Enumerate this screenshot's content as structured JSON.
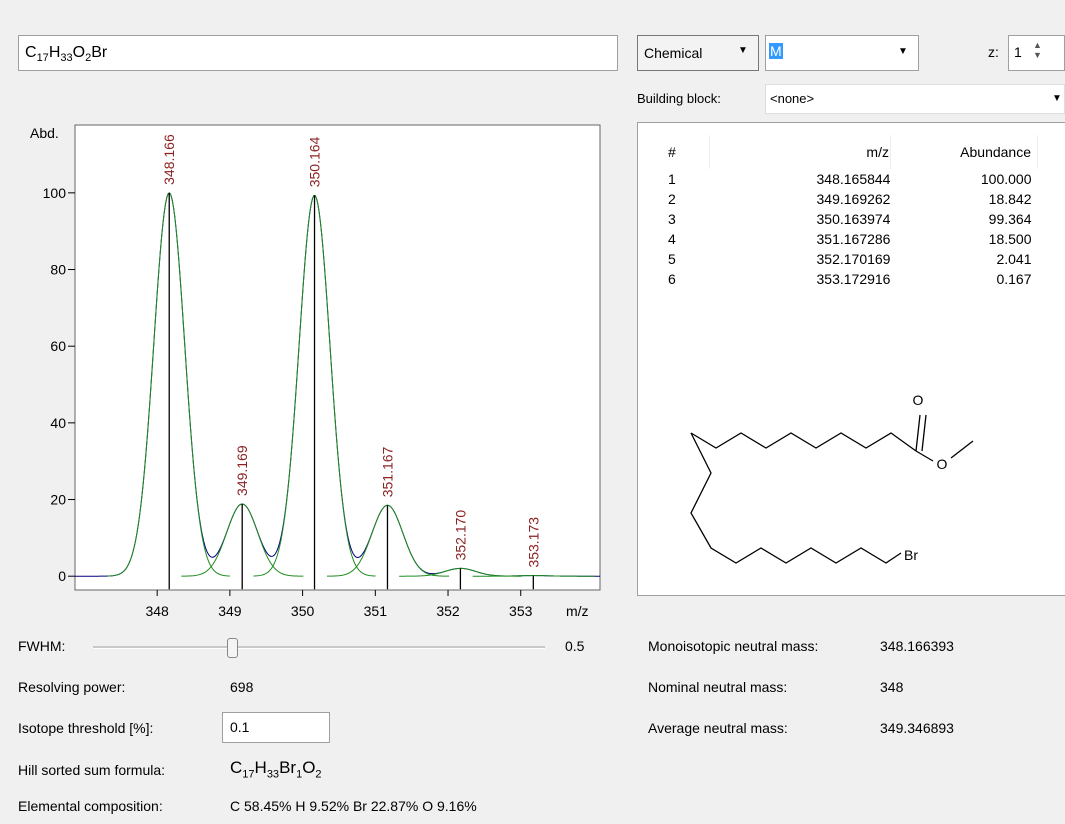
{
  "formula_input": [
    "C",
    "17",
    "H",
    "33",
    "O",
    "2",
    "Br"
  ],
  "chart_data": {
    "type": "stem",
    "y_label": "Abd.",
    "x_label": "m/z",
    "x": [
      348.165844,
      349.169262,
      350.163974,
      351.167286,
      352.170169,
      353.172916
    ],
    "values": [
      100,
      18.842,
      99.364,
      18.5,
      2.041,
      0.167
    ],
    "value_labels": [
      "348.166",
      "349.169",
      "350.164",
      "351.167",
      "352.170",
      "353.173"
    ],
    "xlim": [
      346.87,
      354.09
    ],
    "ylim": [
      -3.6,
      117.7
    ],
    "xticks": [
      348,
      349,
      350,
      351,
      352,
      353
    ],
    "yticks": [
      0,
      20,
      40,
      60,
      80,
      100
    ],
    "color": "#000000",
    "label_color": "#8b2323",
    "peak_color": "#1e8c1e",
    "profile_color": "#000080"
  },
  "controls": {
    "fwhm": {
      "label": "FWHM:",
      "value": 0.5
    },
    "resolving_power": {
      "label": "Resolving power:",
      "value": 698
    },
    "isotope_threshold": {
      "label": "Isotope threshold [%]:",
      "value": 0.1
    },
    "hill_formula": {
      "label": "Hill sorted sum formula:",
      "parts": [
        "C",
        "17",
        "H",
        "33",
        "Br",
        "1",
        "O",
        "2"
      ]
    },
    "elemental_composition": {
      "label": "Elemental composition:",
      "value": "C 58.45% H 9.52% Br 22.87% O 9.16%"
    }
  },
  "selector": {
    "mode": "Chemical",
    "adduct": "M",
    "z_label": "z:",
    "z": 1,
    "building_block_label": "Building block:",
    "building_block": "<none>"
  },
  "table": {
    "columns": [
      "#",
      "m/z",
      "Abundance"
    ],
    "rows": [
      [
        "1",
        "348.165844",
        "100.000"
      ],
      [
        "2",
        "349.169262",
        "18.842"
      ],
      [
        "3",
        "350.163974",
        "99.364"
      ],
      [
        "4",
        "351.167286",
        "18.500"
      ],
      [
        "5",
        "352.170169",
        "2.041"
      ],
      [
        "6",
        "353.172916",
        "0.167"
      ]
    ]
  },
  "structure": {
    "atoms": [
      "O",
      "O",
      "Br"
    ]
  },
  "masses": [
    {
      "label": "Monoisotopic neutral mass:",
      "value": "348.166393"
    },
    {
      "label": "Nominal neutral mass:",
      "value": "348"
    },
    {
      "label": "Average neutral mass:",
      "value": "349.346893"
    }
  ]
}
